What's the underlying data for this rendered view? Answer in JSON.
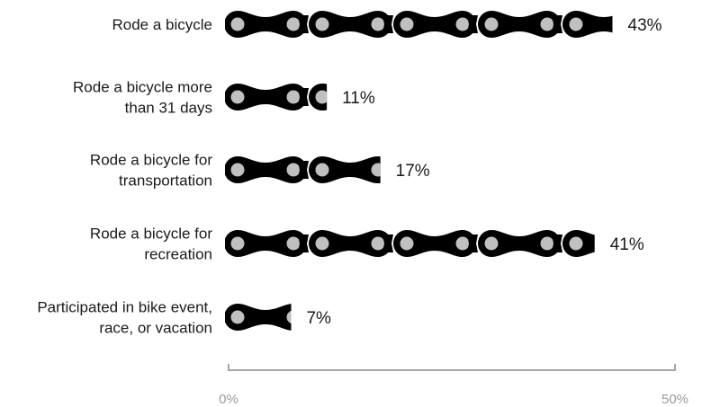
{
  "chart_data": {
    "type": "bar",
    "mark_style": "bicycle-chain pictogram",
    "categories": [
      [
        "Rode a bicycle"
      ],
      [
        "Rode a bicycle more",
        "than 31 days"
      ],
      [
        "Rode a bicycle for",
        "transportation"
      ],
      [
        "Rode a bicycle for",
        "recreation"
      ],
      [
        "Participated in bike event,",
        "race, or vacation"
      ]
    ],
    "values": [
      43,
      11,
      17,
      41,
      7
    ],
    "value_labels": [
      "43%",
      "11%",
      "17%",
      "41%",
      "7%"
    ],
    "xlim": [
      0,
      50
    ],
    "x_ticks": [
      {
        "value": 0,
        "label": "0%"
      },
      {
        "value": 50,
        "label": "50%"
      }
    ],
    "grid": false,
    "legend": "none",
    "colors": {
      "chain": "#000000",
      "roller": "#c0c0c0",
      "axis": "#a6a6a6",
      "text": "#1a1a1a",
      "tick_text": "#9a9a9a"
    }
  }
}
